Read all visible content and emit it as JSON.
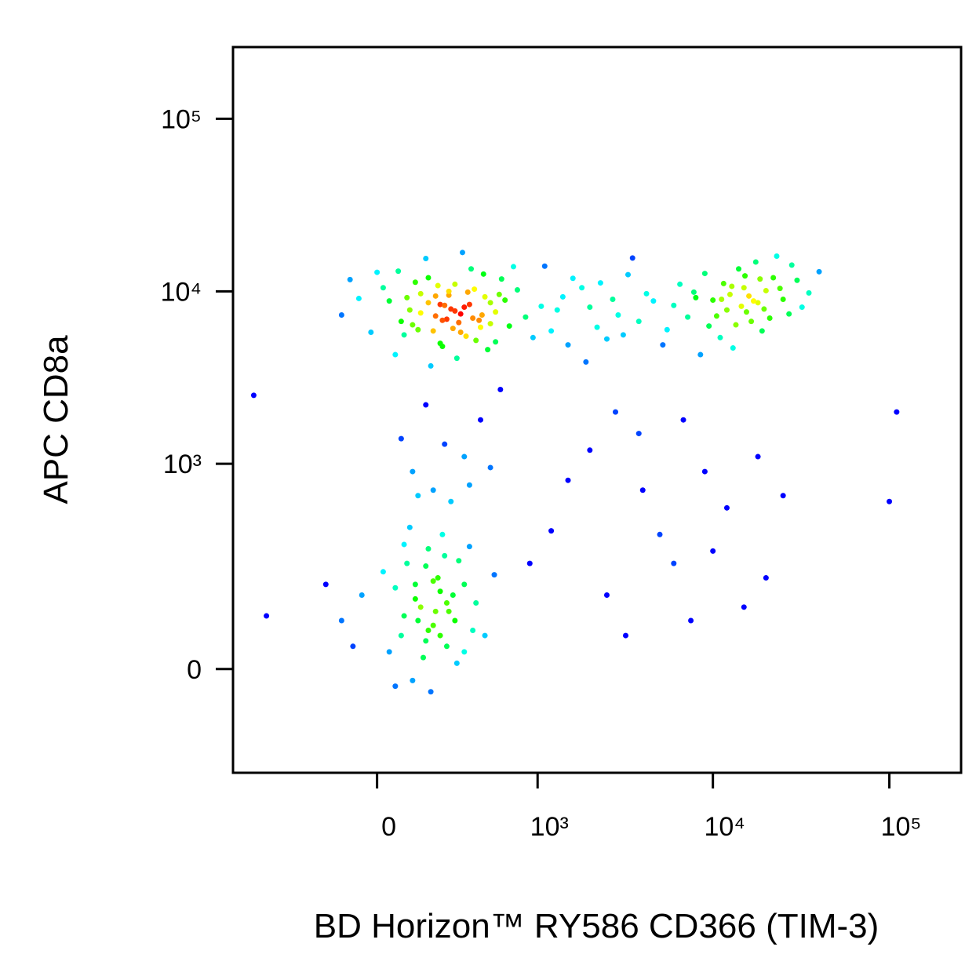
{
  "chart_data": {
    "type": "scatter",
    "xlabel": "BD Horizon™ RY586 CD366 (TIM-3)",
    "ylabel": "APC CD8a",
    "xscale": "biexponential",
    "yscale": "biexponential",
    "xlim": [
      -800,
      255000
    ],
    "ylim": [
      -243,
      260000
    ],
    "xticks": [
      0,
      {
        "value": 1000,
        "label": "10³"
      },
      {
        "value": 10000,
        "label": "10⁴"
      },
      {
        "value": 100000,
        "label": "10⁵"
      }
    ],
    "yticks": [
      0,
      {
        "value": 1000,
        "label": "10³"
      },
      {
        "value": 10000,
        "label": "10⁴"
      },
      {
        "value": 100000,
        "label": "10⁵"
      }
    ],
    "x": [
      210,
      350,
      120,
      480,
      90,
      300,
      260,
      560,
      40,
      180,
      420,
      150,
      680,
      330,
      20,
      240,
      390,
      520,
      110,
      290,
      -60,
      760,
      200,
      440,
      60,
      370,
      850,
      230,
      -120,
      610,
      170,
      310,
      470,
      80,
      270,
      940,
      130,
      400,
      500,
      -20,
      340,
      220,
      640,
      190,
      560,
      0,
      280,
      720,
      100,
      450,
      250,
      360,
      150,
      590,
      -90,
      320,
      1050,
      70,
      410,
      230,
      180,
      300,
      520,
      270,
      140,
      380,
      460,
      210,
      330,
      240,
      1300,
      1800,
      2200,
      1500,
      2700,
      3300,
      1100,
      2000,
      3800,
      2500,
      1600,
      4200,
      1200,
      2900,
      3500,
      1900,
      4600,
      2300,
      1400,
      3100,
      8000,
      12000,
      15000,
      9500,
      18000,
      22000,
      6500,
      11000,
      25000,
      14000,
      7200,
      16500,
      20000,
      30000,
      10000,
      13000,
      5500,
      17500,
      27000,
      9000,
      12500,
      19000,
      35000,
      6000,
      15500,
      23000,
      8500,
      11500,
      21000,
      40000,
      14500,
      16000,
      18500,
      13500,
      24000,
      7800,
      28000,
      10500,
      5200,
      32000,
      17000,
      12800,
      19500,
      15200,
      11200,
      150,
      80,
      220,
      300,
      40,
      180,
      260,
      -50,
      120,
      350,
      200,
      100,
      420,
      160,
      -120,
      240,
      60,
      320,
      190,
      480,
      130,
      270,
      20,
      380,
      170,
      230,
      -80,
      90,
      310,
      550,
      140,
      250,
      60,
      200,
      400,
      110,
      -180,
      290,
      170,
      350,
      210,
      180,
      130,
      260,
      90,
      230,
      200,
      350,
      120,
      450,
      280,
      80,
      520,
      170,
      380,
      250,
      600,
      140,
      1200,
      2500,
      4000,
      6000,
      9000,
      15000,
      2000,
      3200,
      5000,
      12000,
      20000,
      1500,
      7500,
      3800,
      25000,
      10000,
      900,
      2800,
      18000,
      6800,
      110000,
      100000,
      -600,
      -500
    ],
    "y": [
      7200,
      8100,
      6400,
      9300,
      5600,
      11000,
      6900,
      7600,
      8800,
      12000,
      5200,
      9700,
      6300,
      7400,
      10500,
      4800,
      13500,
      8600,
      7800,
      6100,
      9100,
      10200,
      5900,
      6800,
      4300,
      9900,
      7100,
      8400,
      7300,
      11800,
      15500,
      4100,
      12600,
      6700,
      9500,
      5400,
      11300,
      7000,
      4600,
      5800,
      16800,
      10800,
      8900,
      3700,
      5100,
      12900,
      7900,
      13900,
      9200,
      6200,
      8300,
      5500,
      7500,
      9600,
      11700,
      6600,
      8200,
      13100,
      10300,
      5000,
      8600,
      7700,
      6500,
      10000,
      6000,
      8400,
      7300,
      9400,
      5800,
      6800,
      7800,
      10500,
      6200,
      4900,
      9000,
      12500,
      14000,
      8100,
      6700,
      5300,
      11900,
      9700,
      5900,
      7300,
      15600,
      3900,
      8800,
      11200,
      9300,
      5600,
      9200,
      7800,
      10500,
      6300,
      8600,
      12000,
      11000,
      5400,
      9000,
      13500,
      7100,
      6700,
      10100,
      11600,
      8900,
      4700,
      6000,
      14800,
      7400,
      12700,
      9600,
      5900,
      9800,
      8300,
      7600,
      16000,
      4300,
      11100,
      7000,
      13000,
      8200,
      9400,
      11800,
      6400,
      10400,
      9900,
      14200,
      7200,
      4900,
      8100,
      8800,
      10700,
      7900,
      12300,
      9000,
      120,
      60,
      200,
      90,
      30,
      310,
      40,
      150,
      -20,
      180,
      80,
      250,
      130,
      20,
      90,
      380,
      170,
      260,
      -40,
      60,
      140,
      110,
      220,
      320,
      50,
      160,
      40,
      330,
      10,
      210,
      90,
      280,
      -30,
      190,
      70,
      420,
      180,
      150,
      240,
      30,
      110,
      70,
      180,
      130,
      100,
      60,
      700,
      1100,
      900,
      1800,
      600,
      1400,
      950,
      2200,
      750,
      1300,
      2700,
      650,
      400,
      150,
      700,
      250,
      900,
      120,
      1200,
      60,
      380,
      550,
      200,
      800,
      90,
      1500,
      650,
      300,
      250,
      2000,
      1100,
      1800,
      2000,
      600,
      2500,
      100
    ]
  }
}
